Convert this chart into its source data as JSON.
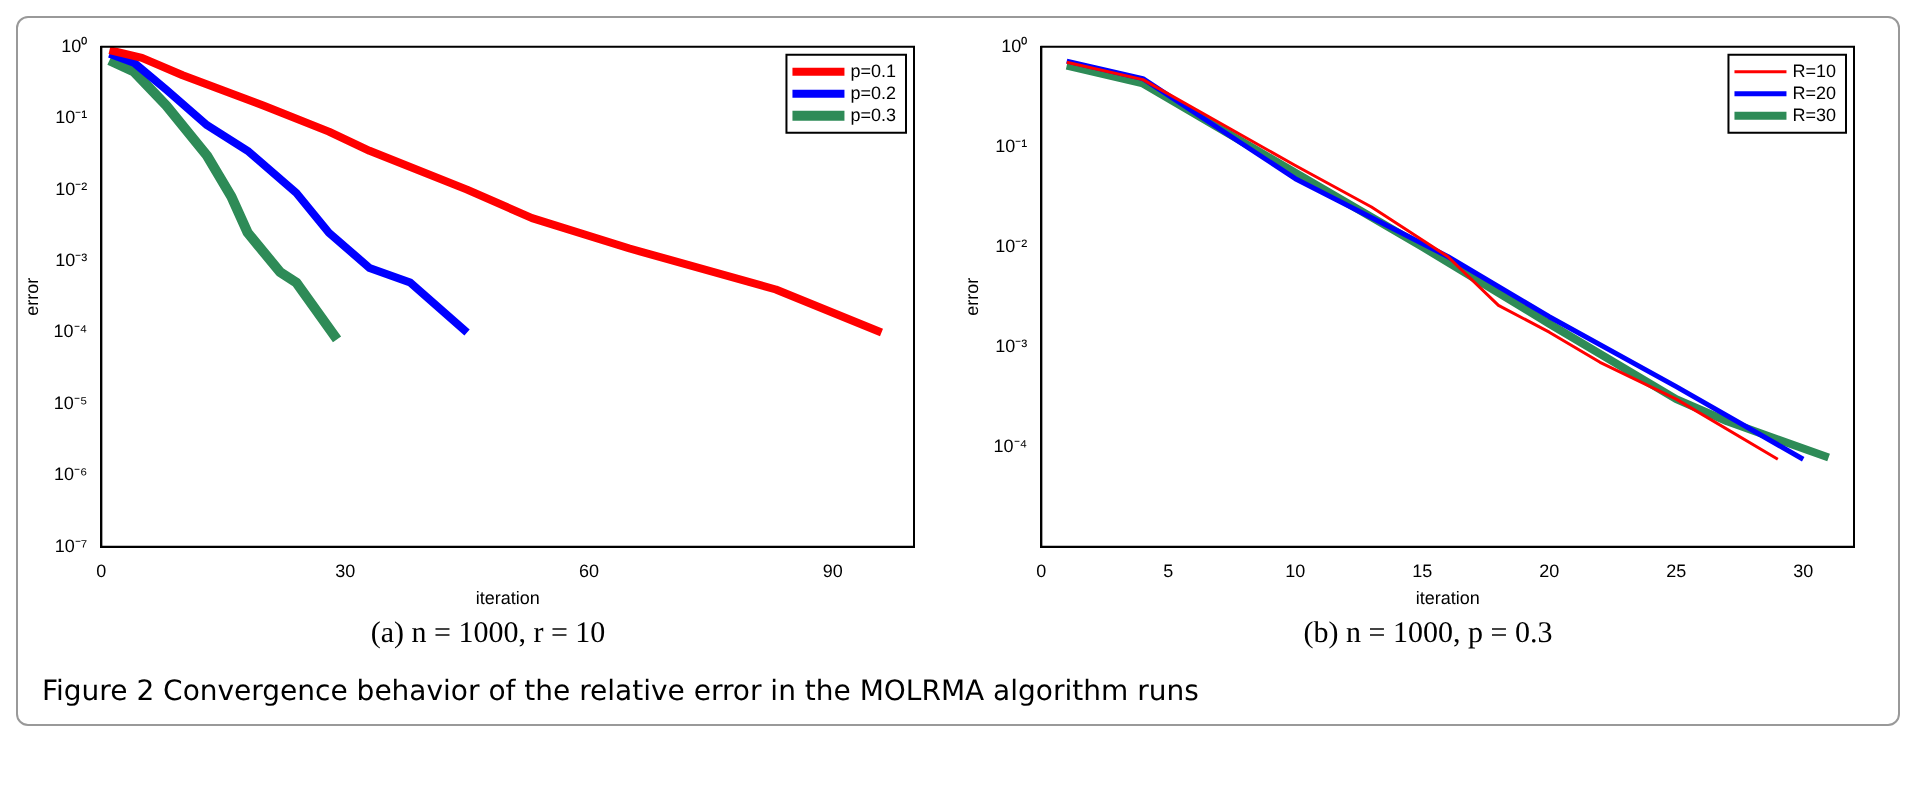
{
  "chart_data": [
    {
      "type": "line",
      "xlabel": "iteration",
      "ylabel": "error",
      "log": "y",
      "legend": "top right",
      "grid": false,
      "marker": "none",
      "line_style": "solid",
      "xlim": [
        0,
        100
      ],
      "xticks": [
        0,
        30,
        60,
        90
      ],
      "ylim": [
        1e-07,
        1
      ],
      "yticks": [
        {
          "value": 1e-07,
          "label": "10⁻⁷"
        },
        {
          "value": 1e-06,
          "label": "10⁻⁶"
        },
        {
          "value": 1e-05,
          "label": "10⁻⁵"
        },
        {
          "value": 0.0001,
          "label": "10⁻⁴"
        },
        {
          "value": 0.001,
          "label": "10⁻³"
        },
        {
          "value": 0.01,
          "label": "10⁻²"
        },
        {
          "value": 0.1,
          "label": "10⁻¹"
        },
        {
          "value": 1,
          "label": "10⁰"
        }
      ],
      "series": [
        {
          "name": "p=0.1",
          "color": "#ff0000",
          "x": [
            1,
            5,
            10,
            20,
            28,
            33,
            45,
            53,
            65,
            83,
            96
          ],
          "values": [
            0.9,
            0.7,
            0.4,
            0.15,
            0.065,
            0.035,
            0.01,
            0.004,
            0.0015,
            0.0004,
            0.0001
          ]
        },
        {
          "name": "p=0.2",
          "color": "#0000ff",
          "x": [
            1,
            4,
            8,
            13,
            18,
            24,
            28,
            33,
            38,
            45
          ],
          "values": [
            0.8,
            0.6,
            0.25,
            0.08,
            0.035,
            0.009,
            0.0025,
            0.0008,
            0.0005,
            0.0001
          ]
        },
        {
          "name": "p=0.3",
          "color": "#2e8b57",
          "x": [
            1,
            4,
            8,
            13,
            16,
            18,
            22,
            24,
            29
          ],
          "values": [
            0.65,
            0.45,
            0.15,
            0.03,
            0.008,
            0.0025,
            0.0007,
            0.0005,
            8e-05
          ]
        }
      ],
      "annotations": [
        "(a) n = 1000, r = 10",
        "Figure 2  Convergence behavior of the relative error in the MOLRMA algorithm runs"
      ]
    },
    {
      "type": "line",
      "xlabel": "iteration",
      "ylabel": "error",
      "log": "y",
      "legend": "top right",
      "grid": false,
      "marker": "none",
      "line_style": "solid",
      "xlim": [
        0,
        32
      ],
      "xticks": [
        0,
        5,
        10,
        15,
        20,
        25,
        30
      ],
      "ylim": [
        1e-05,
        1
      ],
      "yticks": [
        {
          "value": 1e-05,
          "label": null
        },
        {
          "value": 0.0001,
          "label": "10⁻⁴"
        },
        {
          "value": 0.001,
          "label": "10⁻³"
        },
        {
          "value": 0.01,
          "label": "10⁻²"
        },
        {
          "value": 0.1,
          "label": "10⁻¹"
        },
        {
          "value": 1,
          "label": "10⁰"
        }
      ],
      "series": [
        {
          "name": "R=10",
          "color": "#ff0000",
          "x": [
            1,
            4,
            10,
            13,
            16,
            18,
            20,
            22,
            25,
            29
          ],
          "values": [
            0.7,
            0.47,
            0.065,
            0.025,
            0.008,
            0.0026,
            0.0014,
            0.0007,
            0.0003,
            7.5e-05
          ]
        },
        {
          "name": "R=20",
          "color": "#0000ff",
          "x": [
            1,
            4,
            10,
            16,
            20,
            25,
            30
          ],
          "values": [
            0.72,
            0.48,
            0.048,
            0.008,
            0.002,
            0.0004,
            7.5e-05
          ]
        },
        {
          "name": "R=30",
          "color": "#2e8b57",
          "x": [
            1,
            4,
            10,
            15,
            20,
            25,
            27,
            31
          ],
          "values": [
            0.65,
            0.43,
            0.055,
            0.01,
            0.0017,
            0.0003,
            0.00018,
            7.8e-05
          ]
        }
      ],
      "annotations": [
        "(b) n = 1000, p = 0.3"
      ]
    }
  ]
}
